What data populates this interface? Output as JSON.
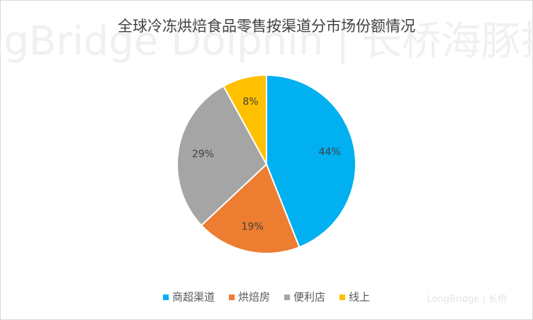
{
  "chart_data": {
    "type": "pie",
    "title": "全球冷冻烘焙食品零售按渠道分市场份额情况",
    "categories": [
      "商超渠道",
      "烘焙房",
      "便利店",
      "线上"
    ],
    "values": [
      44,
      19,
      29,
      8
    ],
    "value_labels": [
      "44%",
      "19%",
      "29%",
      "8%"
    ],
    "colors": [
      "#00b0f0",
      "#ed7d31",
      "#a5a5a5",
      "#ffc000"
    ],
    "legend": "bottom"
  },
  "watermarks": [
    "LongBridge Dolphin | 长桥海豚投研",
    "LongBridge | 长桥"
  ]
}
